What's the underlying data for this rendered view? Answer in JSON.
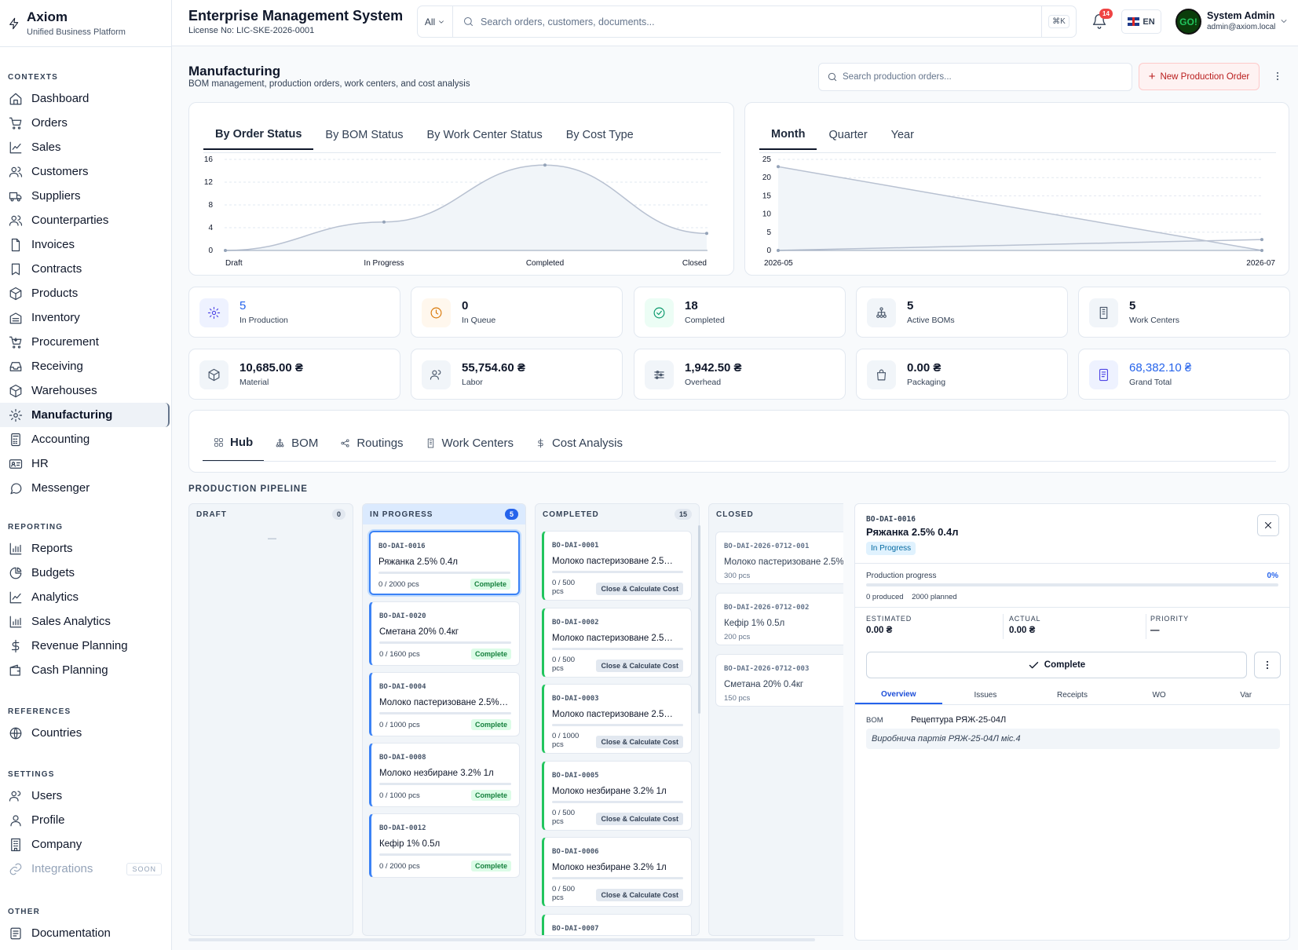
{
  "brand": {
    "name": "Axiom",
    "tagline": "Unified Business Platform"
  },
  "header": {
    "title": "Enterprise Management System",
    "license": "License No: LIC-SKE-2026-0001",
    "search_scope": "All",
    "search_placeholder": "Search orders, customers, documents...",
    "shortcut": "⌘K",
    "notifications": "14",
    "language": "EN",
    "user_name": "System Admin",
    "user_email": "admin@axiom.local",
    "avatar_text": "GO!"
  },
  "sidebar": {
    "sections": [
      {
        "title": "CONTEXTS",
        "items": [
          "Dashboard",
          "Orders",
          "Sales",
          "Customers",
          "Suppliers",
          "Counterparties",
          "Invoices",
          "Contracts",
          "Products",
          "Inventory",
          "Procurement",
          "Receiving",
          "Warehouses",
          "Manufacturing",
          "Accounting",
          "HR",
          "Messenger"
        ]
      },
      {
        "title": "REPORTING",
        "items": [
          "Reports",
          "Budgets",
          "Analytics",
          "Sales Analytics",
          "Revenue Planning",
          "Cash Planning"
        ]
      },
      {
        "title": "REFERENCES",
        "items": [
          "Countries"
        ]
      },
      {
        "title": "SETTINGS",
        "items": [
          "Users",
          "Profile",
          "Company",
          "Integrations"
        ]
      },
      {
        "title": "OTHER",
        "items": [
          "Documentation"
        ]
      }
    ],
    "active": "Manufacturing",
    "soon_label": "SOON"
  },
  "page": {
    "title": "Manufacturing",
    "subtitle": "BOM management, production orders, work centers, and cost analysis",
    "search_placeholder": "Search production orders...",
    "new_button": "New Production Order"
  },
  "chart_tabs": [
    "By Order Status",
    "By BOM Status",
    "By Work Center Status",
    "By Cost Type"
  ],
  "period_tabs": [
    "Month",
    "Quarter",
    "Year"
  ],
  "chart_data": [
    {
      "type": "area",
      "categories": [
        "Draft",
        "In Progress",
        "Completed",
        "Closed"
      ],
      "values": [
        0,
        5,
        15,
        3
      ],
      "ylim": [
        0,
        16
      ],
      "yticks": [
        0,
        4,
        8,
        12,
        16
      ]
    },
    {
      "type": "line",
      "x": [
        "2026-05",
        "2026-07"
      ],
      "series": [
        {
          "values": [
            23,
            0
          ]
        },
        {
          "values": [
            0,
            3
          ]
        }
      ],
      "ylim": [
        0,
        25
      ],
      "yticks": [
        0,
        5,
        10,
        15,
        20,
        25
      ]
    }
  ],
  "stats_row1": [
    {
      "value": "5",
      "label": "In Production",
      "icon": "gear-icon",
      "color": "#eef2ff"
    },
    {
      "value": "0",
      "label": "In Queue",
      "icon": "clock-icon",
      "color": "#fff7ed"
    },
    {
      "value": "18",
      "label": "Completed",
      "icon": "check-circle-icon",
      "color": "#ecfdf5"
    },
    {
      "value": "5",
      "label": "Active BOMs",
      "icon": "hierarchy-icon",
      "color": "#f1f5f9"
    },
    {
      "value": "5",
      "label": "Work Centers",
      "icon": "building-icon",
      "color": "#f1f5f9"
    }
  ],
  "stats_row2": [
    {
      "value": "10,685.00 ₴",
      "label": "Material",
      "icon": "box-icon"
    },
    {
      "value": "55,754.60 ₴",
      "label": "Labor",
      "icon": "users-icon"
    },
    {
      "value": "1,942.50 ₴",
      "label": "Overhead",
      "icon": "sliders-icon"
    },
    {
      "value": "0.00 ₴",
      "label": "Packaging",
      "icon": "package-icon"
    },
    {
      "value": "68,382.10 ₴",
      "label": "Grand Total",
      "icon": "receipt-icon"
    }
  ],
  "hub_tabs": [
    "Hub",
    "BOM",
    "Routings",
    "Work Centers",
    "Cost Analysis"
  ],
  "pipeline": {
    "title": "PRODUCTION PIPELINE",
    "draft": {
      "label": "DRAFT",
      "count": "0",
      "empty": "—"
    },
    "in_progress": {
      "label": "IN PROGRESS",
      "count": "5",
      "cards": [
        {
          "code": "BO-DAI-0016",
          "name": "Ряжанка 2.5% 0.4л",
          "qty": "0 / 2000 pcs",
          "action": "Complete"
        },
        {
          "code": "BO-DAI-0020",
          "name": "Сметана 20% 0.4кг",
          "qty": "0 / 1600 pcs",
          "action": "Complete"
        },
        {
          "code": "BO-DAI-0004",
          "name": "Молоко пастеризоване 2.5%…",
          "qty": "0 / 1000 pcs",
          "action": "Complete"
        },
        {
          "code": "BO-DAI-0008",
          "name": "Молоко незбиране 3.2% 1л",
          "qty": "0 / 1000 pcs",
          "action": "Complete"
        },
        {
          "code": "BO-DAI-0012",
          "name": "Кефір 1% 0.5л",
          "qty": "0 / 2000 pcs",
          "action": "Complete"
        }
      ]
    },
    "completed": {
      "label": "COMPLETED",
      "count": "15",
      "cards": [
        {
          "code": "BO-DAI-0001",
          "name": "Молоко пастеризоване 2.5…",
          "qty": "0 / 500 pcs",
          "action": "Close & Calculate Cost"
        },
        {
          "code": "BO-DAI-0002",
          "name": "Молоко пастеризоване 2.5…",
          "qty": "0 / 500 pcs",
          "action": "Close & Calculate Cost"
        },
        {
          "code": "BO-DAI-0003",
          "name": "Молоко пастеризоване 2.5…",
          "qty": "0 / 1000 pcs",
          "action": "Close & Calculate Cost"
        },
        {
          "code": "BO-DAI-0005",
          "name": "Молоко незбиране 3.2% 1л",
          "qty": "0 / 500 pcs",
          "action": "Close & Calculate Cost"
        },
        {
          "code": "BO-DAI-0006",
          "name": "Молоко незбиране 3.2% 1л",
          "qty": "0 / 500 pcs",
          "action": "Close & Calculate Cost"
        },
        {
          "code": "BO-DAI-0007",
          "name": "",
          "qty": "",
          "action": ""
        }
      ]
    },
    "closed": {
      "label": "CLOSED",
      "cards": [
        {
          "code": "BO-DAI-2026-0712-001",
          "name": "Молоко пастеризоване 2.5%",
          "qty": "300 pcs"
        },
        {
          "code": "BO-DAI-2026-0712-002",
          "name": "Кефір 1% 0.5л",
          "qty": "200 pcs"
        },
        {
          "code": "BO-DAI-2026-0712-003",
          "name": "Сметана 20% 0.4кг",
          "qty": "150 pcs"
        }
      ]
    }
  },
  "detail": {
    "code": "BO-DAI-0016",
    "name": "Ряжанка 2.5% 0.4л",
    "status": "In Progress",
    "progress_label": "Production progress",
    "progress_pct": "0%",
    "progress_value": 0,
    "produced": "0 produced",
    "planned": "2000 planned",
    "estimated_label": "ESTIMATED",
    "estimated": "0.00 ₴",
    "actual_label": "ACTUAL",
    "actual": "0.00 ₴",
    "priority_label": "PRIORITY",
    "priority": "—",
    "complete_button": "Complete",
    "tabs": [
      "Overview",
      "Issues",
      "Receipts",
      "WO",
      "Var"
    ],
    "bom_label": "BOM",
    "bom_value": "Рецептура РЯЖ-25-04Л",
    "batch_note": "Виробнича партія РЯЖ-25-04Л міс.4"
  }
}
